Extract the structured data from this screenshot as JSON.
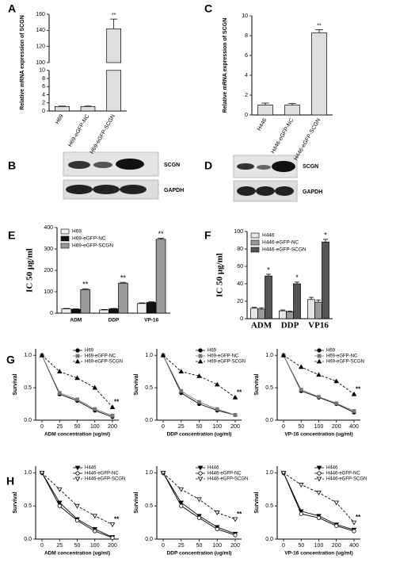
{
  "chart_data": [
    {
      "type": "bar",
      "label": "A",
      "ylabel": "Relative mRNA expression of SCGN",
      "categories": [
        "H69",
        "H69-eGFP-NC",
        "H69-eGFP-SCGN"
      ],
      "values": [
        1.1,
        1.1,
        142
      ],
      "errors": [
        0.1,
        0.1,
        12
      ],
      "annotations": [
        null,
        null,
        "**"
      ],
      "color": "#dedede",
      "ylim": [
        0,
        160
      ],
      "axis_break": [
        10,
        100
      ],
      "yticks": [
        0,
        2,
        4,
        6,
        8,
        10,
        100,
        120,
        140,
        160
      ],
      "xtick_rotation": -60
    },
    {
      "type": "bar",
      "label": "C",
      "ylabel": "Relative mRNA expression of SCGN",
      "categories": [
        "H446",
        "H446-eGFP-NC",
        "H446-eGFP-SCGN"
      ],
      "values": [
        1.0,
        1.0,
        8.3
      ],
      "errors": [
        0.2,
        0.15,
        0.3
      ],
      "annotations": [
        null,
        null,
        "**"
      ],
      "color": "#dedede",
      "ylim": [
        0,
        10
      ],
      "yticks": [
        0,
        2,
        4,
        6,
        8,
        10
      ],
      "xtick_rotation": -60
    },
    {
      "type": "grouped_bar",
      "label": "E",
      "ylabel": "IC 50   μg/ml",
      "categories": [
        "ADM",
        "DDP",
        "VP-16"
      ],
      "legend": "upper left",
      "ylim": [
        0,
        400
      ],
      "yticks": [
        0,
        100,
        200,
        300,
        400
      ],
      "series": [
        {
          "name": "H69",
          "color": "#eeeeee",
          "values": [
            20,
            15,
            45
          ],
          "errors": [
            2,
            2,
            3
          ]
        },
        {
          "name": "H69-eGFP-NC",
          "color": "#111111",
          "values": [
            18,
            20,
            50
          ],
          "errors": [
            2,
            2,
            3
          ]
        },
        {
          "name": "H69-eGFP-SCGN",
          "color": "#9a9a9a",
          "values": [
            110,
            140,
            345
          ],
          "errors": [
            4,
            4,
            5
          ],
          "annotations": [
            "**",
            "**",
            "**"
          ]
        }
      ]
    },
    {
      "type": "grouped_bar",
      "label": "F",
      "ylabel": "IC 50   μg/ml",
      "categories": [
        "ADM",
        "DDP",
        "VP16"
      ],
      "legend": "upper left",
      "ylim": [
        0,
        100
      ],
      "yticks": [
        0,
        20,
        40,
        60,
        80,
        100
      ],
      "series": [
        {
          "name": "H446",
          "color": "#e6e6e6",
          "values": [
            12,
            9,
            22
          ],
          "errors": [
            1,
            1,
            2.5
          ]
        },
        {
          "name": "H446-eGFP-NC",
          "color": "#9a9a9a",
          "values": [
            11,
            8,
            19
          ],
          "errors": [
            1.5,
            0.8,
            2.5
          ]
        },
        {
          "name": "H446-eGFP-SCGN",
          "color": "#555555",
          "values": [
            49,
            40,
            88
          ],
          "errors": [
            2,
            2,
            3
          ],
          "annotations": [
            "*",
            "*",
            "*"
          ]
        }
      ]
    },
    {
      "type": "line",
      "label": "G",
      "ylabel": "Survival",
      "xlabel": "ADM concentration (ug/ml)",
      "categories": [
        "0",
        "25",
        "50",
        "100",
        "200"
      ],
      "legend": "upper right",
      "ylim": [
        0,
        1.1
      ],
      "yticks": [
        {
          "value": 0,
          "label": "0.0"
        },
        {
          "value": 0.5,
          "label": "0.5"
        },
        {
          "value": 1,
          "label": "1.0"
        }
      ],
      "series": [
        {
          "name": "H69",
          "color": "#000000",
          "marker": "circle",
          "filled": true,
          "dashed": false,
          "values": [
            1,
            0.4,
            0.3,
            0.15,
            0.05
          ]
        },
        {
          "name": "H69-eGFP-NC",
          "color": "#777777",
          "marker": "square",
          "filled": true,
          "dashed": false,
          "values": [
            1,
            0.42,
            0.32,
            0.17,
            0.07
          ]
        },
        {
          "name": "H69-eGFP-SCGN",
          "color": "#000000",
          "marker": "triangle",
          "filled": true,
          "dashed": true,
          "values": [
            1,
            0.75,
            0.65,
            0.5,
            0.2
          ],
          "annotations": [
            null,
            null,
            null,
            null,
            "**"
          ]
        }
      ]
    },
    {
      "type": "line",
      "ylabel": "Survival",
      "xlabel": "DDP concentration (ug/ml)",
      "categories": [
        "0",
        "25",
        "50",
        "100",
        "200"
      ],
      "legend": "upper right",
      "ylim": [
        0,
        1.1
      ],
      "yticks": [
        {
          "value": 0,
          "label": "0.0"
        },
        {
          "value": 0.5,
          "label": "0.5"
        },
        {
          "value": 1,
          "label": "1.0"
        }
      ],
      "series": [
        {
          "name": "H69",
          "color": "#000000",
          "marker": "circle",
          "filled": true,
          "dashed": false,
          "values": [
            1,
            0.42,
            0.25,
            0.15,
            0.08
          ]
        },
        {
          "name": "H69-eGFP-NC",
          "color": "#777777",
          "marker": "square",
          "filled": true,
          "dashed": false,
          "values": [
            1,
            0.45,
            0.28,
            0.17,
            0.08
          ]
        },
        {
          "name": "H69-eGFP-SCGN",
          "color": "#000000",
          "marker": "triangle",
          "filled": true,
          "dashed": true,
          "values": [
            1,
            0.75,
            0.68,
            0.55,
            0.35
          ],
          "annotations": [
            null,
            null,
            null,
            null,
            "**"
          ]
        }
      ]
    },
    {
      "type": "line",
      "ylabel": "Survival",
      "xlabel": "VP-16 concentration (ug/ml)",
      "categories": [
        "0",
        "50",
        "100",
        "200",
        "400"
      ],
      "legend": "upper right",
      "ylim": [
        0,
        1.1
      ],
      "yticks": [
        {
          "value": 0,
          "label": "0.0"
        },
        {
          "value": 0.5,
          "label": "0.5"
        },
        {
          "value": 1,
          "label": "1.0"
        }
      ],
      "series": [
        {
          "name": "H69",
          "color": "#000000",
          "marker": "circle",
          "filled": true,
          "dashed": false,
          "values": [
            1,
            0.45,
            0.35,
            0.25,
            0.12
          ]
        },
        {
          "name": "H69-eGFP-NC",
          "color": "#777777",
          "marker": "square",
          "filled": true,
          "dashed": false,
          "values": [
            1,
            0.47,
            0.36,
            0.26,
            0.14
          ]
        },
        {
          "name": "H69-eGFP-SCGN",
          "color": "#000000",
          "marker": "triangle",
          "filled": true,
          "dashed": true,
          "values": [
            1,
            0.82,
            0.7,
            0.6,
            0.4
          ],
          "annotations": [
            null,
            null,
            null,
            null,
            "**"
          ]
        }
      ]
    },
    {
      "type": "line",
      "label": "H",
      "ylabel": "Survival",
      "xlabel": "ADM concentration (ug/ml)",
      "categories": [
        "0",
        "25",
        "50",
        "100",
        "200"
      ],
      "legend": "upper right",
      "ylim": [
        0,
        1.1
      ],
      "yticks": [
        {
          "value": 0,
          "label": "0.0"
        },
        {
          "value": 0.5,
          "label": "0.5"
        },
        {
          "value": 1,
          "label": "1.0"
        }
      ],
      "series": [
        {
          "name": "H446",
          "color": "#000000",
          "marker": "triangle-down",
          "filled": true,
          "dashed": false,
          "values": [
            1,
            0.55,
            0.3,
            0.15,
            0.03
          ]
        },
        {
          "name": "H446-eGFP-NC",
          "color": "#000000",
          "marker": "circle",
          "filled": false,
          "dashed": false,
          "values": [
            1,
            0.5,
            0.28,
            0.12,
            0.02
          ]
        },
        {
          "name": "H446-eGFP-SCGN",
          "color": "#000000",
          "marker": "triangle-down",
          "filled": false,
          "dashed": true,
          "values": [
            1,
            0.75,
            0.5,
            0.35,
            0.22
          ],
          "annotations": [
            null,
            null,
            null,
            null,
            "**"
          ]
        }
      ]
    },
    {
      "type": "line",
      "ylabel": "Survival",
      "xlabel": "DDP concentration (ug/ml)",
      "categories": [
        "0",
        "25",
        "50",
        "100",
        "200"
      ],
      "legend": "upper right",
      "ylim": [
        0,
        1.1
      ],
      "yticks": [
        {
          "value": 0,
          "label": "0.0"
        },
        {
          "value": 0.5,
          "label": "0.5"
        },
        {
          "value": 1,
          "label": "1.0"
        }
      ],
      "series": [
        {
          "name": "H446",
          "color": "#000000",
          "marker": "triangle-down",
          "filled": true,
          "dashed": false,
          "values": [
            1,
            0.55,
            0.35,
            0.18,
            0.08
          ]
        },
        {
          "name": "H446-eGFP-NC",
          "color": "#000000",
          "marker": "circle",
          "filled": false,
          "dashed": false,
          "values": [
            1,
            0.5,
            0.32,
            0.15,
            0.06
          ]
        },
        {
          "name": "H446-eGFP-SCGN",
          "color": "#000000",
          "marker": "triangle-down",
          "filled": false,
          "dashed": true,
          "values": [
            1,
            0.75,
            0.6,
            0.4,
            0.3
          ],
          "annotations": [
            null,
            null,
            null,
            null,
            "**"
          ]
        }
      ]
    },
    {
      "type": "line",
      "ylabel": "Survival",
      "xlabel": "VP-16 concentration (ug/ml)",
      "categories": [
        "0",
        "50",
        "100",
        "200",
        "400"
      ],
      "legend": "upper right",
      "ylim": [
        0,
        1.1
      ],
      "yticks": [
        {
          "value": 0,
          "label": "0.0"
        },
        {
          "value": 0.5,
          "label": "0.5"
        },
        {
          "value": 1,
          "label": "1.0"
        }
      ],
      "series": [
        {
          "name": "H446",
          "color": "#000000",
          "marker": "triangle-down",
          "filled": true,
          "dashed": false,
          "values": [
            1,
            0.42,
            0.35,
            0.22,
            0.14
          ]
        },
        {
          "name": "H446-eGFP-NC",
          "color": "#000000",
          "marker": "circle",
          "filled": false,
          "dashed": false,
          "values": [
            1,
            0.38,
            0.32,
            0.2,
            0.12
          ]
        },
        {
          "name": "H446-eGFP-SCGN",
          "color": "#000000",
          "marker": "triangle-down",
          "filled": false,
          "dashed": true,
          "values": [
            1,
            0.82,
            0.7,
            0.55,
            0.25
          ],
          "annotations": [
            null,
            null,
            null,
            null,
            "**"
          ]
        }
      ]
    }
  ],
  "blots": [
    {
      "label": "B",
      "bands": [
        "SCGN",
        "GAPDH"
      ]
    },
    {
      "label": "D",
      "bands": [
        "SCGN",
        "GAPDH"
      ]
    }
  ]
}
